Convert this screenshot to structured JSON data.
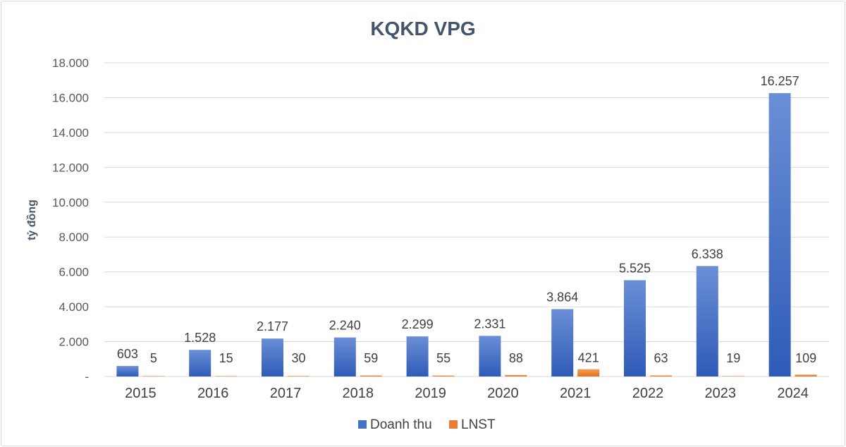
{
  "chart_data": {
    "type": "bar",
    "title": "KQKD VPG",
    "xlabel": "",
    "ylabel": "tỷ đồng",
    "categories": [
      "2015",
      "2016",
      "2017",
      "2018",
      "2019",
      "2020",
      "2021",
      "2022",
      "2023",
      "2024"
    ],
    "series": [
      {
        "name": "Doanh thu",
        "color": "#4472c4",
        "values": [
          603,
          1528,
          2177,
          2240,
          2299,
          2331,
          3864,
          5525,
          6338,
          16257
        ],
        "labels": [
          "603",
          "1.528",
          "2.177",
          "2.240",
          "2.299",
          "2.331",
          "3.864",
          "5.525",
          "6.338",
          "16.257"
        ]
      },
      {
        "name": "LNST",
        "color": "#ed7d31",
        "values": [
          5,
          15,
          30,
          59,
          55,
          88,
          421,
          63,
          19,
          109
        ],
        "labels": [
          "5",
          "15",
          "30",
          "59",
          "55",
          "88",
          "421",
          "63",
          "19",
          "109"
        ]
      }
    ],
    "ylim": [
      0,
      18000
    ],
    "yticks": [
      0,
      2000,
      4000,
      6000,
      8000,
      10000,
      12000,
      14000,
      16000,
      18000
    ],
    "ytick_labels": [
      "-",
      "2.000",
      "4.000",
      "6.000",
      "8.000",
      "10.000",
      "12.000",
      "14.000",
      "16.000",
      "18.000"
    ],
    "grid": true,
    "legend_position": "bottom"
  }
}
